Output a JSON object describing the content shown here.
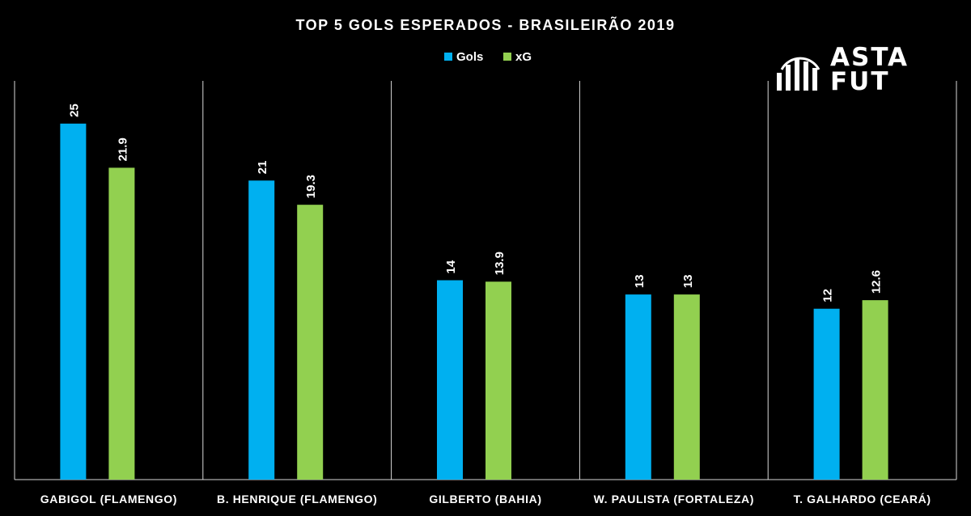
{
  "chart_data": {
    "type": "bar",
    "title": "TOP 5 GOLS ESPERADOS - BRASILEIRÃO 2019",
    "categories": [
      "GABIGOL (FLAMENGO)",
      "B. HENRIQUE (FLAMENGO)",
      "GILBERTO (BAHIA)",
      "W. PAULISTA (FORTALEZA)",
      "T. GALHARDO (CEARÁ)"
    ],
    "series": [
      {
        "name": "Gols",
        "color": "#00b0f0",
        "values": [
          25,
          21,
          14,
          13,
          12
        ],
        "labels": [
          "25",
          "21",
          "14",
          "13",
          "12"
        ]
      },
      {
        "name": "xG",
        "color": "#92d050",
        "values": [
          21.9,
          19.3,
          13.9,
          13,
          12.6
        ],
        "labels": [
          "21.9",
          "19.3",
          "13.9",
          "13",
          "12.6"
        ]
      }
    ],
    "ylim": [
      0,
      28
    ],
    "legend": "top-center",
    "grid": false,
    "category_separators": true
  },
  "logo": {
    "line1": "ASTA",
    "line2": "FUT"
  },
  "colors": {
    "background": "#000000",
    "text": "#ffffff",
    "separator": "#d9d9d9"
  }
}
